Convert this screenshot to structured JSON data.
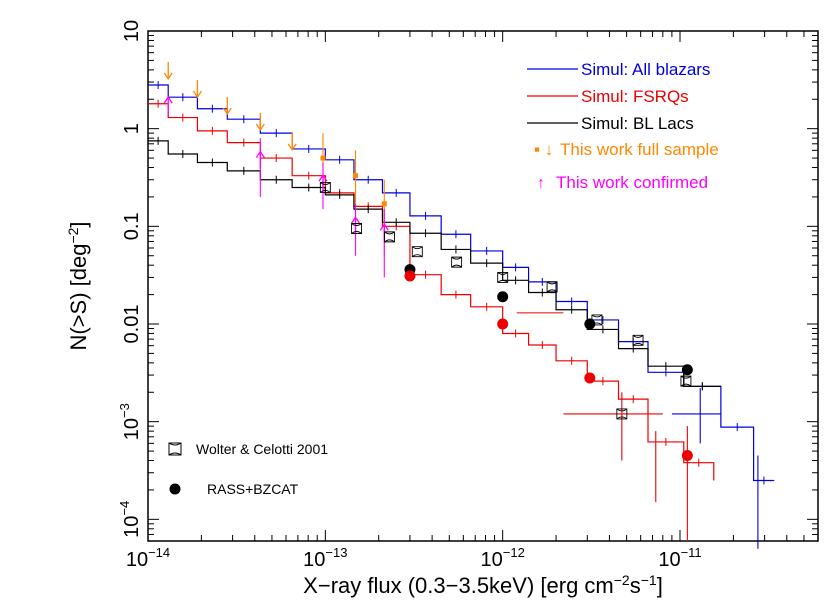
{
  "chart_data": {
    "type": "line",
    "xscale": "log",
    "yscale": "log",
    "xlim": [
      1e-14,
      6e-11
    ],
    "ylim": [
      6e-05,
      10
    ],
    "xlabel": "X−ray flux (0.3−3.5keV) [erg cm",
    "xlabel_sup1": "−2",
    "xlabel_mid": "s",
    "xlabel_sup2": "−1",
    "xlabel_end": "]",
    "ylabel": "N(>S) [deg",
    "ylabel_sup": "−2",
    "ylabel_end": "]",
    "xticks": [
      {
        "value": 1e-14,
        "base": "10",
        "exp": "−14"
      },
      {
        "value": 1e-13,
        "base": "10",
        "exp": "−13"
      },
      {
        "value": 1e-12,
        "base": "10",
        "exp": "−12"
      },
      {
        "value": 1e-11,
        "base": "10",
        "exp": "−11"
      }
    ],
    "yticks": [
      {
        "value": 10,
        "base": "10",
        "exp": ""
      },
      {
        "value": 1,
        "base": "1",
        "exp": ""
      },
      {
        "value": 0.1,
        "base": "0.1",
        "exp": ""
      },
      {
        "value": 0.01,
        "base": "0.01",
        "exp": ""
      },
      {
        "value": 0.001,
        "base": "10",
        "exp": "−3"
      },
      {
        "value": 0.0001,
        "base": "10",
        "exp": "−4"
      }
    ],
    "colors": {
      "all": "#0000dd",
      "fsrq": "#ee0000",
      "bll": "#000000",
      "full": "#ff8800",
      "confirmed": "#ff00ff"
    },
    "legend": {
      "placement": "top-right",
      "all": "Simul: All blazars",
      "fsrq": "Simul: FSRQs",
      "bll": "Simul: BL Lacs",
      "full_marks": "▪ ↓",
      "full": "This work full sample",
      "confirmed_mark": "↑",
      "confirmed": "This work confirmed",
      "wolter": "Wolter & Celotti 2001",
      "rass": "RASS+BZCAT"
    },
    "series": [
      {
        "name": "Simul: All blazars",
        "key": "all",
        "steps": [
          [
            1e-14,
            2.8
          ],
          [
            1.3e-14,
            2.1
          ],
          [
            1.9e-14,
            1.6
          ],
          [
            2.8e-14,
            1.25
          ],
          [
            4.3e-14,
            0.9
          ],
          [
            6.5e-14,
            0.62
          ],
          [
            1e-13,
            0.48
          ],
          [
            1.45e-13,
            0.3
          ],
          [
            2.1e-13,
            0.22
          ],
          [
            3e-13,
            0.128
          ],
          [
            4.5e-13,
            0.083
          ],
          [
            6.6e-13,
            0.056
          ],
          [
            1e-12,
            0.038
          ],
          [
            1.4e-12,
            0.027
          ],
          [
            2e-12,
            0.017
          ],
          [
            3e-12,
            0.011
          ],
          [
            4.5e-12,
            0.0066
          ],
          [
            6.6e-12,
            0.0032
          ],
          [
            1.05e-11,
            0.0023
          ],
          [
            1.7e-11,
            0.00088
          ],
          [
            2.6e-11,
            0.00025
          ],
          [
            3.4e-11,
            0.00025
          ]
        ]
      },
      {
        "name": "Simul: FSRQs",
        "key": "fsrq",
        "steps": [
          [
            1e-14,
            1.8
          ],
          [
            1.3e-14,
            1.3
          ],
          [
            1.9e-14,
            0.95
          ],
          [
            2.8e-14,
            0.72
          ],
          [
            4.3e-14,
            0.5
          ],
          [
            6.5e-14,
            0.33
          ],
          [
            1e-13,
            0.22
          ],
          [
            1.45e-13,
            0.16
          ],
          [
            2.1e-13,
            0.1
          ],
          [
            3e-13,
            0.032
          ],
          [
            4.5e-13,
            0.02
          ],
          [
            6.6e-13,
            0.015
          ],
          [
            1e-12,
            0.008
          ],
          [
            1.4e-12,
            0.0061
          ],
          [
            2e-12,
            0.0042
          ],
          [
            3e-12,
            0.0026
          ],
          [
            4.5e-12,
            0.0017
          ],
          [
            6.6e-12,
            0.00062
          ],
          [
            1.05e-11,
            0.00038
          ],
          [
            1.55e-11,
            0.00025
          ]
        ]
      },
      {
        "name": "Simul: BL Lacs",
        "key": "bll",
        "steps": [
          [
            1e-14,
            0.75
          ],
          [
            1.3e-14,
            0.55
          ],
          [
            1.9e-14,
            0.45
          ],
          [
            2.8e-14,
            0.37
          ],
          [
            4.3e-14,
            0.3
          ],
          [
            6.5e-14,
            0.25
          ],
          [
            1e-13,
            0.21
          ],
          [
            1.45e-13,
            0.15
          ],
          [
            2.1e-13,
            0.11
          ],
          [
            3e-13,
            0.085
          ],
          [
            4.5e-13,
            0.058
          ],
          [
            6.6e-13,
            0.042
          ],
          [
            1e-12,
            0.028
          ],
          [
            1.4e-12,
            0.021
          ],
          [
            2e-12,
            0.014
          ],
          [
            3e-12,
            0.0088
          ],
          [
            4.5e-12,
            0.0056
          ],
          [
            6.6e-12,
            0.0037
          ],
          [
            1.05e-11,
            0.0023
          ],
          [
            1.7e-11,
            0.0023
          ]
        ]
      }
    ],
    "full_sample_upper_limits": [
      [
        1.3e-14,
        4.0
      ],
      [
        1.9e-14,
        2.6
      ],
      [
        2.8e-14,
        1.75
      ],
      [
        4.3e-14,
        1.2
      ],
      [
        6.5e-14,
        0.75
      ]
    ],
    "full_sample_points": [
      {
        "x": 9.7e-14,
        "y": 0.5,
        "ylo": 0.25,
        "yhi": 0.9
      },
      {
        "x": 1.48e-13,
        "y": 0.33,
        "ylo": 0.15,
        "yhi": 0.6
      },
      {
        "x": 2.15e-13,
        "y": 0.17,
        "ylo": 0.05,
        "yhi": 0.3
      }
    ],
    "confirmed_upper_limits": [
      [
        1.3e-14,
        1.7
      ]
    ],
    "confirmed_points": [
      {
        "x": 4.3e-14,
        "y": 0.47,
        "ylo": 0.2,
        "yhi": 0.8
      },
      {
        "x": 9.7e-14,
        "y": 0.27,
        "ylo": 0.15,
        "yhi": 0.45
      },
      {
        "x": 1.48e-13,
        "y": 0.1,
        "ylo": 0.05,
        "yhi": 0.17
      },
      {
        "x": 2.15e-13,
        "y": 0.085,
        "ylo": 0.03,
        "yhi": 0.15
      }
    ],
    "wolter_points": [
      {
        "x": 1e-13,
        "y": 0.25
      },
      {
        "x": 1.5e-13,
        "y": 0.095
      },
      {
        "x": 2.3e-13,
        "y": 0.078
      },
      {
        "x": 3.3e-13,
        "y": 0.055
      },
      {
        "x": 5.5e-13,
        "y": 0.043
      },
      {
        "x": 1e-12,
        "y": 0.03
      },
      {
        "x": 1.9e-12,
        "y": 0.024
      },
      {
        "x": 3.4e-12,
        "y": 0.011
      },
      {
        "x": 5.8e-12,
        "y": 0.0068
      },
      {
        "x": 1.08e-11,
        "y": 0.0026
      },
      {
        "x": 4.7e-12,
        "y": 0.0012
      }
    ],
    "rass_black": [
      {
        "x": 3e-13,
        "y": 0.036
      },
      {
        "x": 1e-12,
        "y": 0.019
      },
      {
        "x": 3.1e-12,
        "y": 0.01
      },
      {
        "x": 1.1e-11,
        "y": 0.0034
      }
    ],
    "rass_red": [
      {
        "x": 3e-13,
        "y": 0.031
      },
      {
        "x": 1e-12,
        "y": 0.01
      },
      {
        "x": 3.1e-12,
        "y": 0.0028
      },
      {
        "x": 1.1e-11,
        "y": 0.00045,
        "ylo": 6e-05,
        "yhi": 0.0009
      }
    ],
    "red_crosses": [
      {
        "x": 1.6e-12,
        "y": 0.013,
        "xlo": 1.2e-12,
        "xhi": 2.2e-12
      },
      {
        "x": 4.7e-12,
        "y": 0.0012,
        "xlo": 2.2e-12,
        "xhi": 8e-12,
        "ylo": 0.0004,
        "yhi": 0.002
      },
      {
        "x": 7.3e-12,
        "y": 0.0004,
        "ylo": 0.00015,
        "yhi": 0.0008
      }
    ],
    "blue_crosses": [
      {
        "x": 1.3e-11,
        "y": 0.0012,
        "xlo": 9e-12,
        "xhi": 1.7e-11,
        "ylo": 0.0006,
        "yhi": 0.0022
      },
      {
        "x": 2.75e-11,
        "y": 0.00025,
        "ylo": 5e-05,
        "yhi": 0.00045
      }
    ]
  }
}
